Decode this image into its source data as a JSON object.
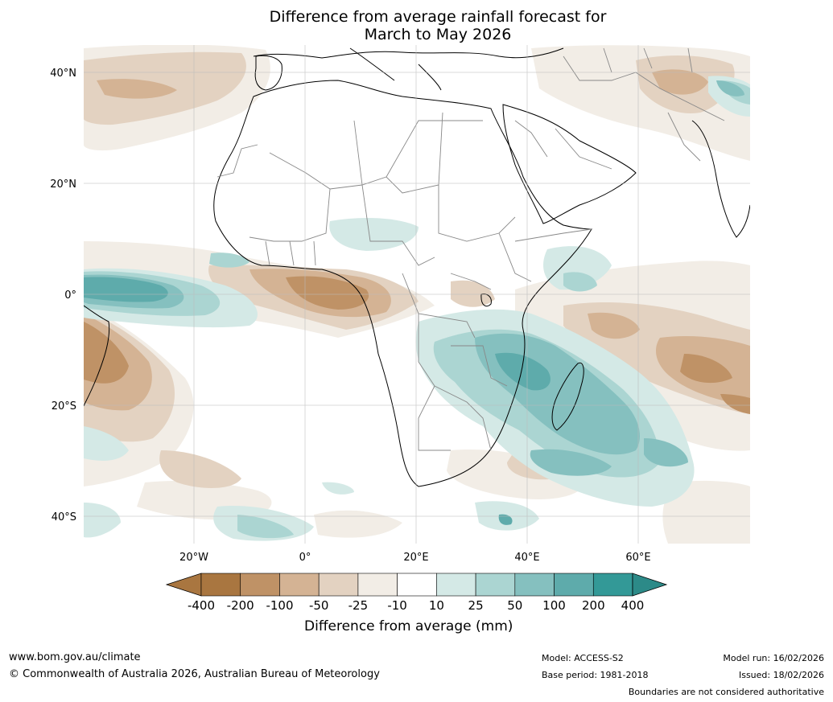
{
  "title": {
    "line1": "Difference from average rainfall forecast for",
    "line2": "March to May 2026"
  },
  "axes": {
    "lat_labels": [
      "40°N",
      "20°N",
      "0°",
      "20°S",
      "40°S"
    ],
    "lon_labels": [
      "20°W",
      "0°",
      "20°E",
      "40°E",
      "60°E"
    ]
  },
  "colorbar": {
    "title": "Difference from average (mm)",
    "labels": [
      "-400",
      "-200",
      "-100",
      "-50",
      "-25",
      "-10",
      "10",
      "25",
      "50",
      "100",
      "200",
      "400"
    ],
    "colors": [
      "#a97640",
      "#bf9266",
      "#d4b394",
      "#e3d2c1",
      "#f2ede6",
      "#ffffff",
      "#d4e9e6",
      "#abd5d2",
      "#85c0bf",
      "#5eabab",
      "#339997"
    ],
    "extend_low": "#a97640",
    "extend_high": "#2c8a88"
  },
  "footer": {
    "website": "www.bom.gov.au/climate",
    "copyright": "© Commonwealth of Australia 2026, Australian Bureau of Meteorology",
    "model": "Model: ACCESS-S2",
    "base_period": "Base period: 1981-2018",
    "model_run": "Model run: 16/02/2026",
    "issued": "Issued: 18/02/2026",
    "disclaimer": "Boundaries are not considered authoritative"
  }
}
